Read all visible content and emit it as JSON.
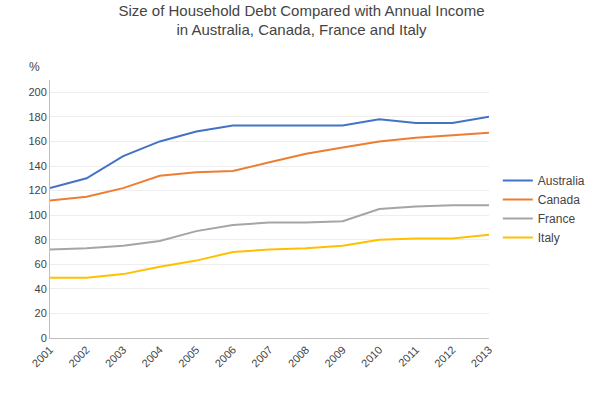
{
  "chart_data": {
    "type": "line",
    "title": "Size of Household Debt Compared with Annual Income\nin Australia, Canada, France and Italy",
    "ylabel": "%",
    "x": [
      2001,
      2002,
      2003,
      2004,
      2005,
      2006,
      2007,
      2008,
      2009,
      2010,
      2011,
      2012,
      2013
    ],
    "series": [
      {
        "name": "Australia",
        "color": "#4472C4",
        "values": [
          122,
          130,
          148,
          160,
          168,
          173,
          173,
          173,
          173,
          178,
          175,
          175,
          180
        ]
      },
      {
        "name": "Canada",
        "color": "#ED7D31",
        "values": [
          112,
          115,
          122,
          132,
          135,
          136,
          143,
          150,
          155,
          160,
          163,
          165,
          167
        ]
      },
      {
        "name": "France",
        "color": "#A5A5A5",
        "values": [
          72,
          73,
          75,
          79,
          87,
          92,
          94,
          94,
          95,
          105,
          107,
          108,
          108
        ]
      },
      {
        "name": "Italy",
        "color": "#FFC000",
        "values": [
          49,
          49,
          52,
          58,
          63,
          70,
          72,
          73,
          75,
          80,
          81,
          81,
          84
        ]
      }
    ],
    "xlim": [
      2001,
      2013
    ],
    "xticks": [
      2001,
      2002,
      2003,
      2004,
      2005,
      2006,
      2007,
      2008,
      2009,
      2010,
      2011,
      2012,
      2013
    ],
    "ylim": [
      0,
      210
    ],
    "yticks": [
      0,
      20,
      40,
      60,
      80,
      100,
      120,
      140,
      160,
      180,
      200
    ],
    "grid": true,
    "legend": "right"
  }
}
